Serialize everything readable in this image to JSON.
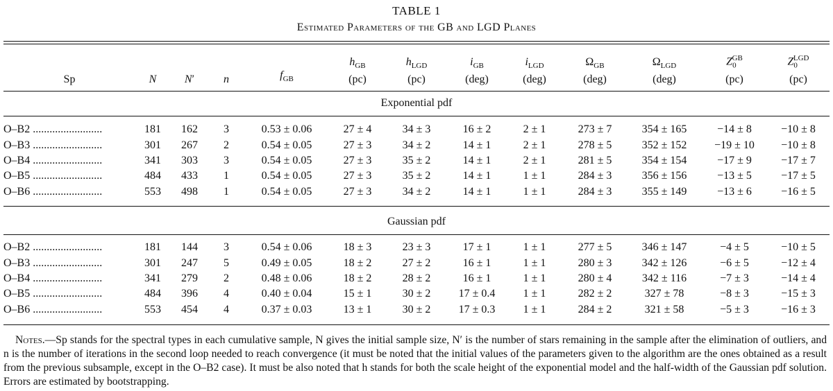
{
  "table": {
    "label": "TABLE 1",
    "caption": "Estimated Parameters of the GB and LGD Planes",
    "columns": {
      "sp": "Sp",
      "N": "N",
      "Nprime": "N′",
      "n": "n",
      "fGB": "fGB",
      "hGB": [
        "hGB",
        "(pc)"
      ],
      "hLGD": [
        "hLGD",
        "(pc)"
      ],
      "iGB": [
        "iGB",
        "(deg)"
      ],
      "iLGD": [
        "iLGD",
        "(deg)"
      ],
      "OmegaGB": [
        "ΩGB",
        "(deg)"
      ],
      "OmegaLGD": [
        "ΩLGD",
        "(deg)"
      ],
      "Z0GB": [
        "Z0GB",
        "(pc)"
      ],
      "Z0LGD": [
        "Z0LGD",
        "(pc)"
      ]
    },
    "sections": [
      {
        "title": "Exponential pdf",
        "rows": [
          [
            "O–B2 .........................",
            "181",
            "162",
            "3",
            "0.53 ± 0.06",
            "27 ± 4",
            "34 ± 3",
            "16 ± 2",
            "2 ± 1",
            "273 ± 7",
            "354 ± 165",
            "−14 ± 8",
            "−10 ± 8"
          ],
          [
            "O–B3 .........................",
            "301",
            "267",
            "2",
            "0.54 ± 0.05",
            "27 ± 3",
            "34 ± 2",
            "14 ± 1",
            "2 ± 1",
            "278 ± 5",
            "352 ± 152",
            "−19 ± 10",
            "−10 ± 8"
          ],
          [
            "O–B4 .........................",
            "341",
            "303",
            "3",
            "0.54 ± 0.05",
            "27 ± 3",
            "35 ± 2",
            "14 ± 1",
            "2 ± 1",
            "281 ± 5",
            "354 ± 154",
            "−17 ± 9",
            "−17 ± 7"
          ],
          [
            "O–B5 .........................",
            "484",
            "433",
            "1",
            "0.54 ± 0.05",
            "27 ± 3",
            "35 ± 2",
            "14 ± 1",
            "1 ± 1",
            "284 ± 3",
            "356 ± 156",
            "−13 ± 5",
            "−17 ± 5"
          ],
          [
            "O–B6 .........................",
            "553",
            "498",
            "1",
            "0.54 ± 0.05",
            "27 ± 3",
            "34 ± 2",
            "14 ± 1",
            "1 ± 1",
            "284 ± 3",
            "355 ± 149",
            "−13 ± 6",
            "−16 ± 5"
          ]
        ]
      },
      {
        "title": "Gaussian pdf",
        "rows": [
          [
            "O–B2 .........................",
            "181",
            "144",
            "3",
            "0.54 ± 0.06",
            "18 ± 3",
            "23 ± 3",
            "17 ± 1",
            "1 ± 1",
            "277 ± 5",
            "346 ± 147",
            "−4 ± 5",
            "−10 ± 5"
          ],
          [
            "O–B3 .........................",
            "301",
            "247",
            "5",
            "0.49 ± 0.05",
            "18 ± 2",
            "27 ± 2",
            "16 ± 1",
            "1 ± 1",
            "280 ± 3",
            "342 ± 126",
            "−6 ± 5",
            "−12 ± 4"
          ],
          [
            "O–B4 .........................",
            "341",
            "279",
            "2",
            "0.48 ± 0.06",
            "18 ± 2",
            "28 ± 2",
            "16 ± 1",
            "1 ± 1",
            "280 ± 4",
            "342 ± 116",
            "−7 ± 3",
            "−14 ± 4"
          ],
          [
            "O–B5 .........................",
            "484",
            "396",
            "4",
            "0.40 ± 0.04",
            "15 ± 1",
            "30 ± 2",
            "17 ± 0.4",
            "1 ± 1",
            "282 ± 2",
            "327 ± 78",
            "−8 ± 3",
            "−15 ± 3"
          ],
          [
            "O–B6 .........................",
            "553",
            "454",
            "4",
            "0.37 ± 0.03",
            "13 ± 1",
            "30 ± 2",
            "17 ± 0.3",
            "1 ± 1",
            "284 ± 2",
            "321 ± 58",
            "−5 ± 3",
            "−16 ± 3"
          ]
        ]
      }
    ],
    "notes": {
      "label": "Notes.",
      "text": "—Sp stands for the spectral types in each cumulative sample, N gives the initial sample size, N′ is the number of stars remaining in the sample after the elimination of outliers, and n is the number of iterations in the second loop needed to reach convergence (it must be noted that the initial values of the parameters given to the algorithm are the ones obtained as a result from the previous subsample, except in the O–B2 case). It must be also noted that h stands for both the scale height of the exponential model and the half-width of the Gaussian pdf solution. Errors are estimated by bootstrapping."
    }
  }
}
